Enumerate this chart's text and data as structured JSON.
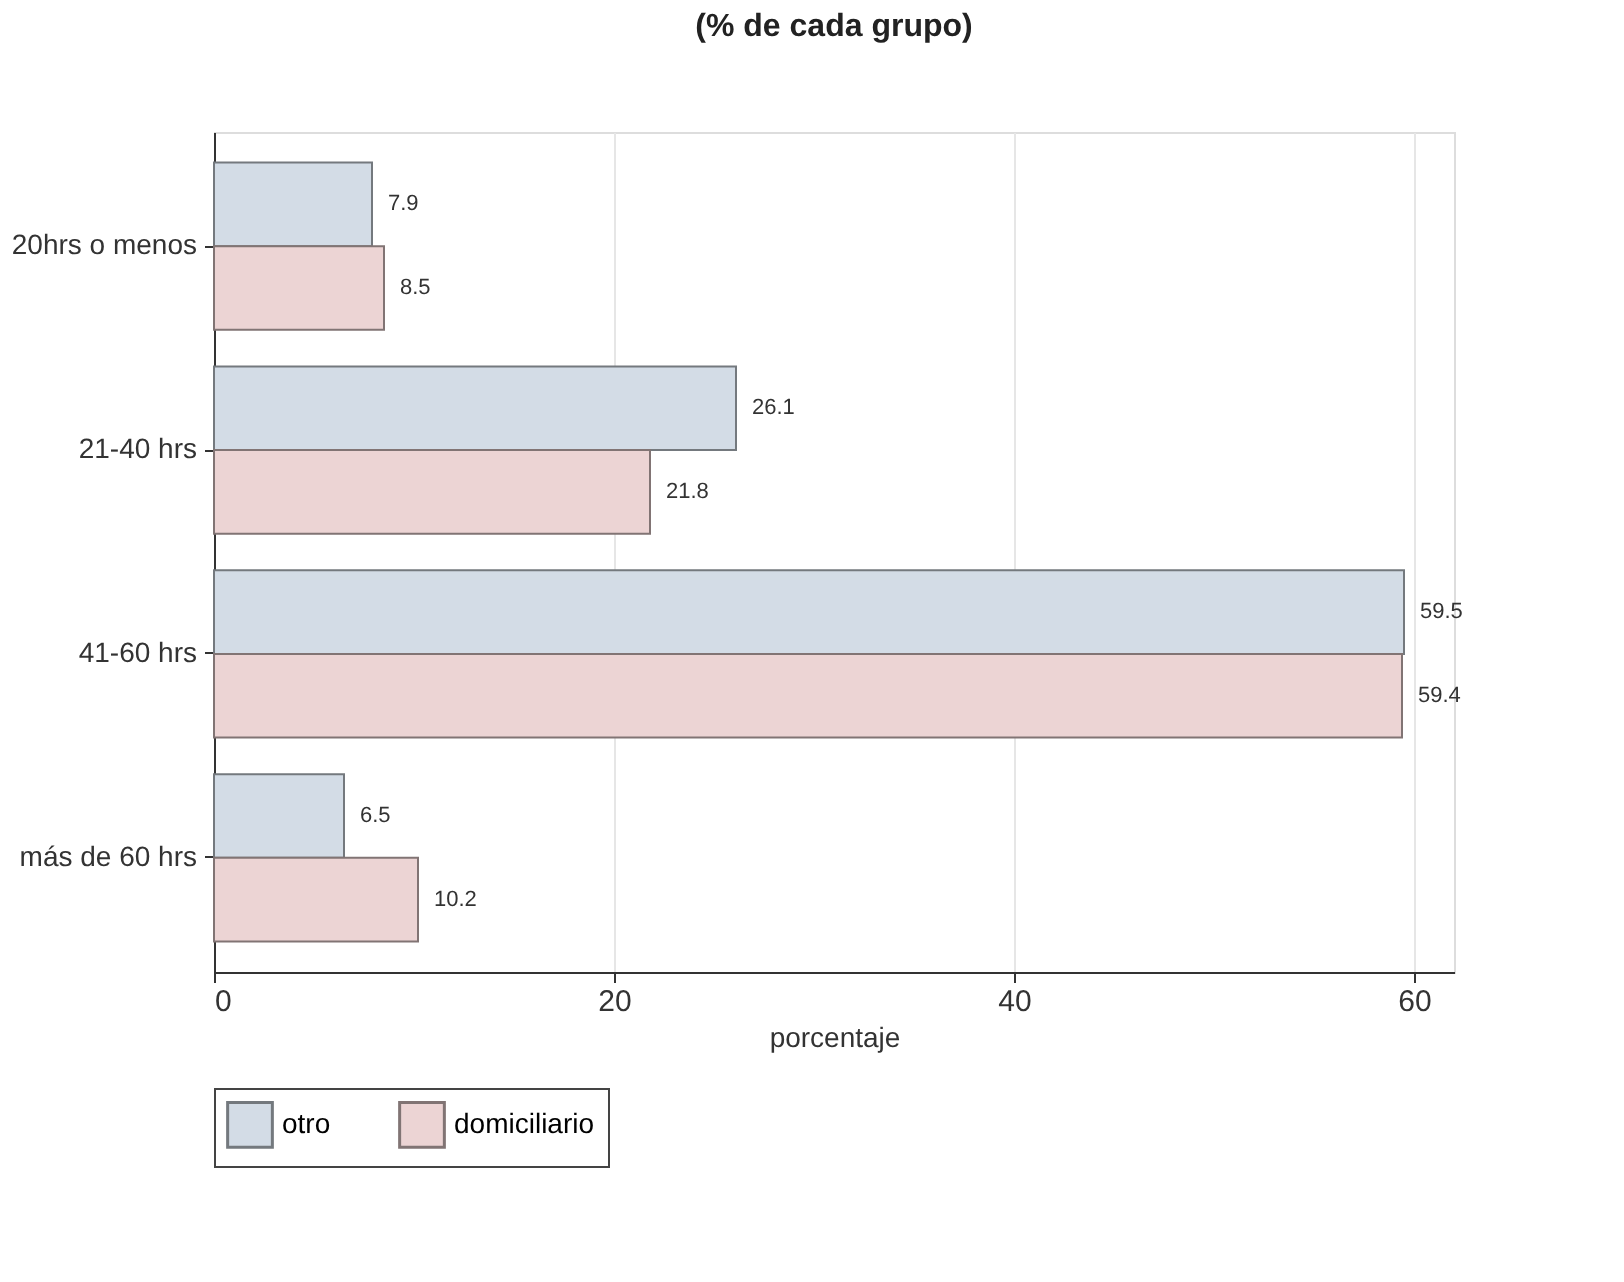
{
  "chart_data": {
    "type": "bar",
    "orientation": "horizontal",
    "title": "(% de cada grupo)",
    "xlabel": "porcentaje",
    "categories": [
      "20hrs o menos",
      "21-40 hrs",
      "41-60 hrs",
      "más de 60 hrs"
    ],
    "series": [
      {
        "name": "otro",
        "color": "#d3dce6",
        "values": [
          7.9,
          26.1,
          59.5,
          6.5
        ]
      },
      {
        "name": "domiciliario",
        "color": "#ecd4d4",
        "values": [
          8.5,
          21.8,
          59.4,
          10.2
        ]
      }
    ],
    "xlim": [
      0,
      62
    ],
    "xticks": [
      0,
      20,
      40,
      60
    ],
    "grid": "x",
    "legend": "bottom",
    "data_labels": true
  }
}
